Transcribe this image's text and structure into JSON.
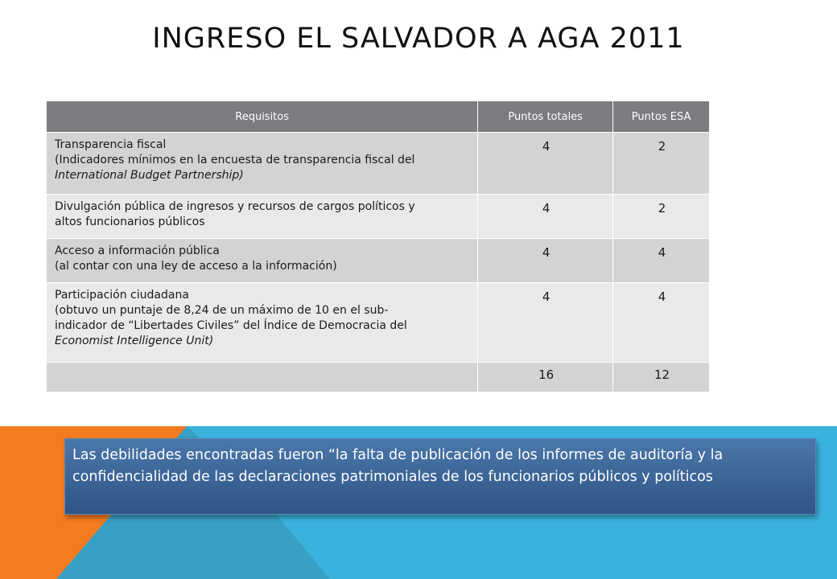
{
  "title": "INGRESO EL SALVADOR A AGA 2011",
  "table": {
    "headers": [
      "Requisitos",
      "Puntos totales",
      "Puntos ESA"
    ],
    "rows": [
      {
        "lines": [
          "Transparencia fiscal",
          "(Indicadores mínimos en la encuesta de transparencia fiscal del",
          "International Budget Partnership)"
        ],
        "total": "4",
        "esa": "2"
      },
      {
        "lines": [
          "Divulgación pública de ingresos y recursos de cargos políticos y",
          "altos funcionarios públicos"
        ],
        "total": "4",
        "esa": "2"
      },
      {
        "lines": [
          "Acceso a información pública",
          "(al contar con una ley de acceso a la información)"
        ],
        "total": "4",
        "esa": "4"
      },
      {
        "lines": [
          "Participación ciudadana",
          "(obtuvo un puntaje de 8,24 de un máximo de 10 en el sub-",
          "indicador de “Libertades Civiles” del Índice de Democracia del",
          "Economist Intelligence Unit)"
        ],
        "total": "4",
        "esa": "4"
      }
    ],
    "totals": {
      "label": "",
      "total": "16",
      "esa": "12"
    }
  },
  "callout": {
    "text": "Las debilidades encontradas fueron “la falta de publicación de los informes de auditoría y la confidencialidad de las declaraciones patrimoniales de los funcionarios públicos y políticos"
  },
  "colors": {
    "header_bg": "#7b7c80",
    "row_dark": "#d3d3d4",
    "row_light": "#e9e9ea",
    "band_blue": "#3bb3de",
    "accent_orange": "#f47b20",
    "callout_blue": "#3a6699"
  }
}
